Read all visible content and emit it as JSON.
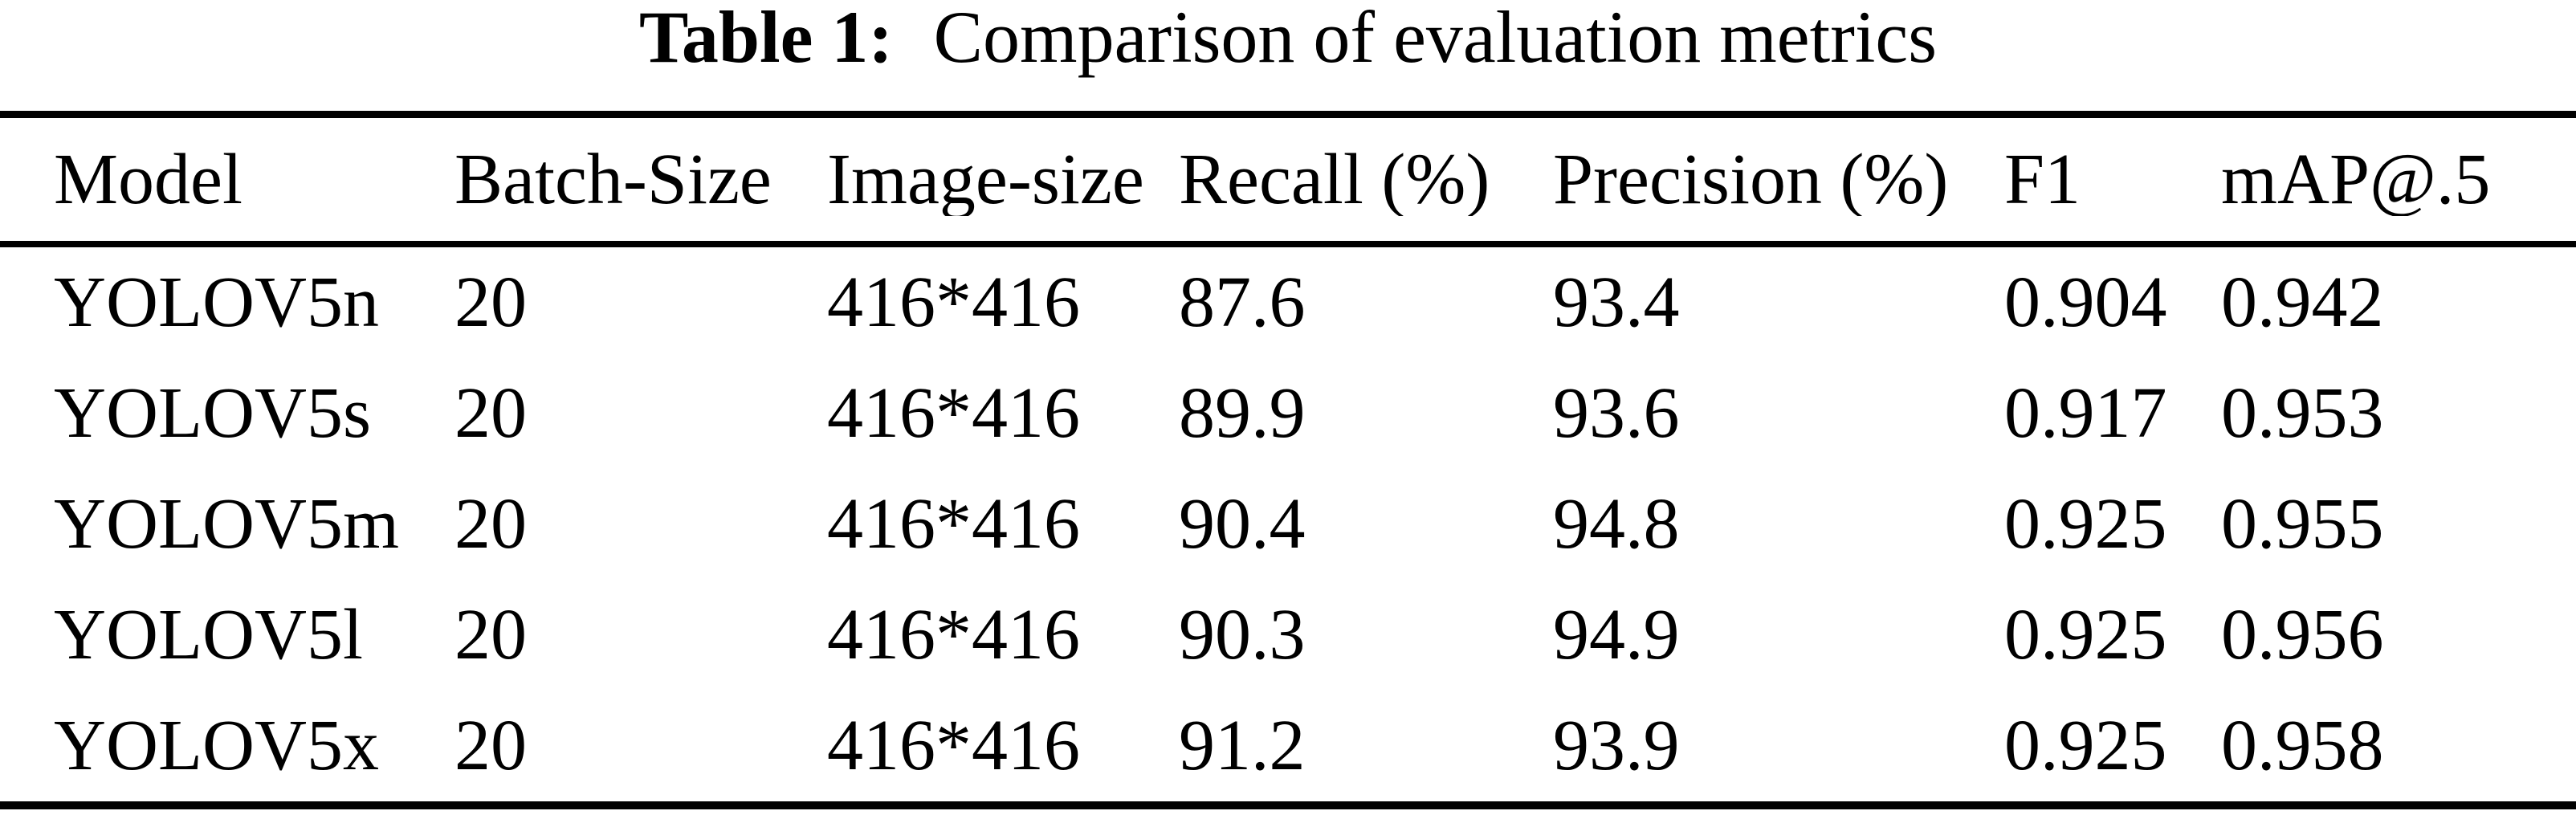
{
  "caption": {
    "label": "Table 1:",
    "text": "Comparison of evaluation metrics"
  },
  "chart_data": {
    "type": "table",
    "title": "Table 1: Comparison of evaluation metrics",
    "columns": [
      "Model",
      "Batch-Size",
      "Image-size",
      "Recall (%)",
      "Precision (%)",
      "F1",
      "mAP@.5"
    ],
    "rows": [
      [
        "YOLOV5n",
        "20",
        "416*416",
        "87.6",
        "93.4",
        "0.904",
        "0.942"
      ],
      [
        "YOLOV5s",
        "20",
        "416*416",
        "89.9",
        "93.6",
        "0.917",
        "0.953"
      ],
      [
        "YOLOV5m",
        "20",
        "416*416",
        "90.4",
        "94.8",
        "0.925",
        "0.955"
      ],
      [
        "YOLOV5l",
        "20",
        "416*416",
        "90.3",
        "94.9",
        "0.925",
        "0.956"
      ],
      [
        "YOLOV5x",
        "20",
        "416*416",
        "91.2",
        "93.9",
        "0.925",
        "0.958"
      ]
    ]
  },
  "colors": {
    "ink": "#000000",
    "background": "#ffffff"
  }
}
